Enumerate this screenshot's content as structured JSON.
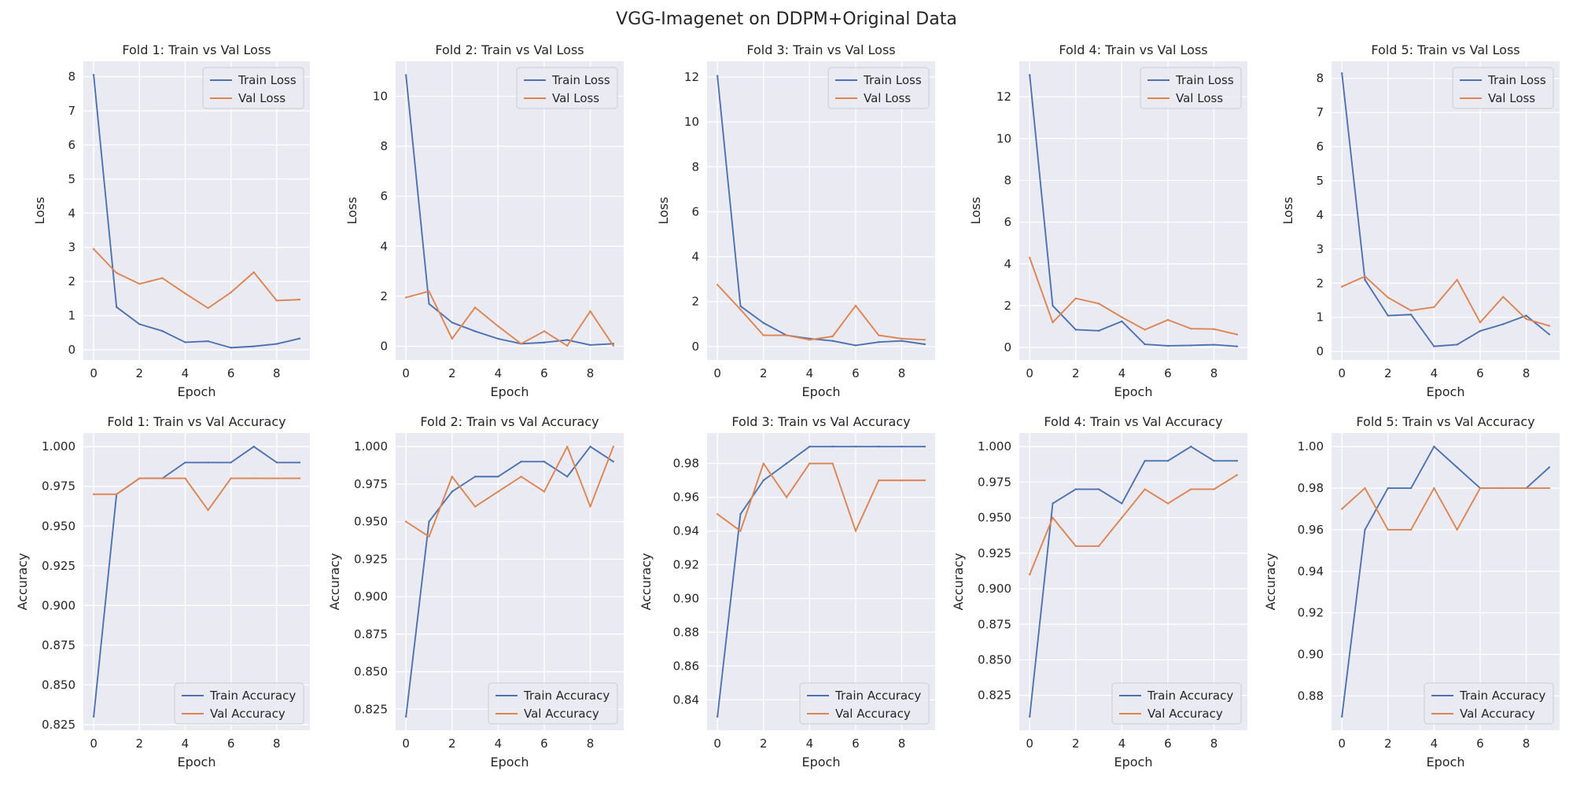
{
  "figure_title": "VGG-Imagenet on DDPM+Original Data",
  "colors": {
    "train": "#4c72b0",
    "val": "#dd8452",
    "axes_bg": "#eaeaf2",
    "grid": "#ffffff"
  },
  "chart_data": [
    {
      "type": "line",
      "title": "Fold 1: Train vs Val Loss",
      "xlabel": "Epoch",
      "ylabel": "Loss",
      "x": [
        0,
        1,
        2,
        3,
        4,
        5,
        6,
        7,
        8,
        9
      ],
      "xlim": [
        -0.45,
        9.45
      ],
      "xticks": [
        0,
        2,
        4,
        6,
        8
      ],
      "ylim": [
        -0.3,
        8.45
      ],
      "yticks": [
        0,
        1,
        2,
        3,
        4,
        5,
        6,
        7,
        8
      ],
      "ytick_labels": [
        "0",
        "1",
        "2",
        "3",
        "4",
        "5",
        "6",
        "7",
        "8"
      ],
      "legend": "upper right",
      "series": [
        {
          "name": "Train Loss",
          "values": [
            8.05,
            1.25,
            0.75,
            0.55,
            0.22,
            0.25,
            0.06,
            0.1,
            0.17,
            0.33
          ]
        },
        {
          "name": "Val Loss",
          "values": [
            2.95,
            2.25,
            1.93,
            2.1,
            1.65,
            1.22,
            1.68,
            2.27,
            1.44,
            1.47
          ]
        }
      ]
    },
    {
      "type": "line",
      "title": "Fold 2: Train vs Val Loss",
      "xlabel": "Epoch",
      "ylabel": "Loss",
      "x": [
        0,
        1,
        2,
        3,
        4,
        5,
        6,
        7,
        8,
        9
      ],
      "xlim": [
        -0.45,
        9.45
      ],
      "xticks": [
        0,
        2,
        4,
        6,
        8
      ],
      "ylim": [
        -0.55,
        11.4
      ],
      "yticks": [
        0,
        2,
        4,
        6,
        8,
        10
      ],
      "ytick_labels": [
        "0",
        "2",
        "4",
        "6",
        "8",
        "10"
      ],
      "legend": "upper right",
      "series": [
        {
          "name": "Train Loss",
          "values": [
            10.85,
            1.7,
            0.95,
            0.6,
            0.3,
            0.1,
            0.15,
            0.25,
            0.05,
            0.1
          ]
        },
        {
          "name": "Val Loss",
          "values": [
            1.95,
            2.2,
            0.3,
            1.55,
            0.8,
            0.1,
            0.6,
            0.02,
            1.4,
            0.02
          ]
        }
      ]
    },
    {
      "type": "line",
      "title": "Fold 3: Train vs Val Loss",
      "xlabel": "Epoch",
      "ylabel": "Loss",
      "x": [
        0,
        1,
        2,
        3,
        4,
        5,
        6,
        7,
        8,
        9
      ],
      "xlim": [
        -0.45,
        9.45
      ],
      "xticks": [
        0,
        2,
        4,
        6,
        8
      ],
      "ylim": [
        -0.6,
        12.7
      ],
      "yticks": [
        0,
        2,
        4,
        6,
        8,
        10,
        12
      ],
      "ytick_labels": [
        "0",
        "2",
        "4",
        "6",
        "8",
        "10",
        "12"
      ],
      "legend": "upper right",
      "series": [
        {
          "name": "Train Loss",
          "values": [
            12.05,
            1.8,
            1.05,
            0.5,
            0.35,
            0.25,
            0.05,
            0.2,
            0.25,
            0.1
          ]
        },
        {
          "name": "Val Loss",
          "values": [
            2.75,
            1.65,
            0.5,
            0.5,
            0.3,
            0.45,
            1.82,
            0.5,
            0.35,
            0.3
          ]
        }
      ]
    },
    {
      "type": "line",
      "title": "Fold 4: Train vs Val Loss",
      "xlabel": "Epoch",
      "ylabel": "Loss",
      "x": [
        0,
        1,
        2,
        3,
        4,
        5,
        6,
        7,
        8,
        9
      ],
      "xlim": [
        -0.45,
        9.45
      ],
      "xticks": [
        0,
        2,
        4,
        6,
        8
      ],
      "ylim": [
        -0.6,
        13.7
      ],
      "yticks": [
        0,
        2,
        4,
        6,
        8,
        10,
        12
      ],
      "ytick_labels": [
        "0",
        "2",
        "4",
        "6",
        "8",
        "10",
        "12"
      ],
      "legend": "upper right",
      "series": [
        {
          "name": "Train Loss",
          "values": [
            13.05,
            2.0,
            0.85,
            0.8,
            1.25,
            0.15,
            0.08,
            0.1,
            0.13,
            0.05
          ]
        },
        {
          "name": "Val Loss",
          "values": [
            4.3,
            1.2,
            2.35,
            2.1,
            1.45,
            0.85,
            1.32,
            0.9,
            0.88,
            0.62
          ]
        }
      ]
    },
    {
      "type": "line",
      "title": "Fold 5: Train vs Val Loss",
      "xlabel": "Epoch",
      "ylabel": "Loss",
      "x": [
        0,
        1,
        2,
        3,
        4,
        5,
        6,
        7,
        8,
        9
      ],
      "xlim": [
        -0.45,
        9.45
      ],
      "xticks": [
        0,
        2,
        4,
        6,
        8
      ],
      "ylim": [
        -0.25,
        8.5
      ],
      "yticks": [
        0,
        1,
        2,
        3,
        4,
        5,
        6,
        7,
        8
      ],
      "ytick_labels": [
        "0",
        "1",
        "2",
        "3",
        "4",
        "5",
        "6",
        "7",
        "8"
      ],
      "legend": "upper right",
      "series": [
        {
          "name": "Train Loss",
          "values": [
            8.15,
            2.1,
            1.05,
            1.08,
            0.15,
            0.2,
            0.6,
            0.8,
            1.05,
            0.5
          ]
        },
        {
          "name": "Val Loss",
          "values": [
            1.9,
            2.2,
            1.58,
            1.2,
            1.3,
            2.1,
            0.85,
            1.6,
            0.95,
            0.75
          ]
        }
      ]
    },
    {
      "type": "line",
      "title": "Fold 1: Train vs Val Accuracy",
      "xlabel": "Epoch",
      "ylabel": "Accuracy",
      "x": [
        0,
        1,
        2,
        3,
        4,
        5,
        6,
        7,
        8,
        9
      ],
      "xlim": [
        -0.45,
        9.45
      ],
      "xticks": [
        0,
        2,
        4,
        6,
        8
      ],
      "ylim": [
        0.8215,
        1.0085
      ],
      "yticks": [
        0.825,
        0.85,
        0.875,
        0.9,
        0.925,
        0.95,
        0.975,
        1.0
      ],
      "ytick_labels": [
        "0.825",
        "0.850",
        "0.875",
        "0.900",
        "0.925",
        "0.950",
        "0.975",
        "1.000"
      ],
      "legend": "lower right",
      "series": [
        {
          "name": "Train Accuracy",
          "values": [
            0.83,
            0.97,
            0.98,
            0.98,
            0.99,
            0.99,
            0.99,
            1.0,
            0.99,
            0.99
          ]
        },
        {
          "name": "Val Accuracy",
          "values": [
            0.97,
            0.97,
            0.98,
            0.98,
            0.98,
            0.96,
            0.98,
            0.98,
            0.98,
            0.98
          ]
        }
      ]
    },
    {
      "type": "line",
      "title": "Fold 2: Train vs Val Accuracy",
      "xlabel": "Epoch",
      "ylabel": "Accuracy",
      "x": [
        0,
        1,
        2,
        3,
        4,
        5,
        6,
        7,
        8,
        9
      ],
      "xlim": [
        -0.45,
        9.45
      ],
      "xticks": [
        0,
        2,
        4,
        6,
        8
      ],
      "ylim": [
        0.811,
        1.009
      ],
      "yticks": [
        0.825,
        0.85,
        0.875,
        0.9,
        0.925,
        0.95,
        0.975,
        1.0
      ],
      "ytick_labels": [
        "0.825",
        "0.850",
        "0.875",
        "0.900",
        "0.925",
        "0.950",
        "0.975",
        "1.000"
      ],
      "legend": "lower right",
      "series": [
        {
          "name": "Train Accuracy",
          "values": [
            0.82,
            0.95,
            0.97,
            0.98,
            0.98,
            0.99,
            0.99,
            0.98,
            1.0,
            0.99
          ]
        },
        {
          "name": "Val Accuracy",
          "values": [
            0.95,
            0.94,
            0.98,
            0.96,
            0.97,
            0.98,
            0.97,
            1.0,
            0.96,
            1.0
          ]
        }
      ]
    },
    {
      "type": "line",
      "title": "Fold 3: Train vs Val Accuracy",
      "xlabel": "Epoch",
      "ylabel": "Accuracy",
      "x": [
        0,
        1,
        2,
        3,
        4,
        5,
        6,
        7,
        8,
        9
      ],
      "xlim": [
        -0.45,
        9.45
      ],
      "xticks": [
        0,
        2,
        4,
        6,
        8
      ],
      "ylim": [
        0.822,
        0.998
      ],
      "yticks": [
        0.84,
        0.86,
        0.88,
        0.9,
        0.92,
        0.94,
        0.96,
        0.98
      ],
      "ytick_labels": [
        "0.84",
        "0.86",
        "0.88",
        "0.90",
        "0.92",
        "0.94",
        "0.96",
        "0.98"
      ],
      "legend": "lower right",
      "series": [
        {
          "name": "Train Accuracy",
          "values": [
            0.83,
            0.95,
            0.97,
            0.98,
            0.99,
            0.99,
            0.99,
            0.99,
            0.99,
            0.99
          ]
        },
        {
          "name": "Val Accuracy",
          "values": [
            0.95,
            0.94,
            0.98,
            0.96,
            0.98,
            0.98,
            0.94,
            0.97,
            0.97,
            0.97
          ]
        }
      ]
    },
    {
      "type": "line",
      "title": "Fold 4: Train vs Val Accuracy",
      "xlabel": "Epoch",
      "ylabel": "Accuracy",
      "x": [
        0,
        1,
        2,
        3,
        4,
        5,
        6,
        7,
        8,
        9
      ],
      "xlim": [
        -0.45,
        9.45
      ],
      "xticks": [
        0,
        2,
        4,
        6,
        8
      ],
      "ylim": [
        0.8005,
        1.0095
      ],
      "yticks": [
        0.825,
        0.85,
        0.875,
        0.9,
        0.925,
        0.95,
        0.975,
        1.0
      ],
      "ytick_labels": [
        "0.825",
        "0.850",
        "0.875",
        "0.900",
        "0.925",
        "0.950",
        "0.975",
        "1.000"
      ],
      "legend": "lower right",
      "series": [
        {
          "name": "Train Accuracy",
          "values": [
            0.81,
            0.96,
            0.97,
            0.97,
            0.96,
            0.99,
            0.99,
            1.0,
            0.99,
            0.99
          ]
        },
        {
          "name": "Val Accuracy",
          "values": [
            0.91,
            0.95,
            0.93,
            0.93,
            0.95,
            0.97,
            0.96,
            0.97,
            0.97,
            0.98
          ]
        }
      ]
    },
    {
      "type": "line",
      "title": "Fold 5: Train vs Val Accuracy",
      "xlabel": "Epoch",
      "ylabel": "Accuracy",
      "x": [
        0,
        1,
        2,
        3,
        4,
        5,
        6,
        7,
        8,
        9
      ],
      "xlim": [
        -0.45,
        9.45
      ],
      "xticks": [
        0,
        2,
        4,
        6,
        8
      ],
      "ylim": [
        0.8635,
        1.0065
      ],
      "yticks": [
        0.88,
        0.9,
        0.92,
        0.94,
        0.96,
        0.98,
        1.0
      ],
      "ytick_labels": [
        "0.88",
        "0.90",
        "0.92",
        "0.94",
        "0.96",
        "0.98",
        "1.00"
      ],
      "legend": "lower right",
      "series": [
        {
          "name": "Train Accuracy",
          "values": [
            0.87,
            0.96,
            0.98,
            0.98,
            1.0,
            0.99,
            0.98,
            0.98,
            0.98,
            0.99
          ]
        },
        {
          "name": "Val Accuracy",
          "values": [
            0.97,
            0.98,
            0.96,
            0.96,
            0.98,
            0.96,
            0.98,
            0.98,
            0.98,
            0.98
          ]
        }
      ]
    }
  ]
}
